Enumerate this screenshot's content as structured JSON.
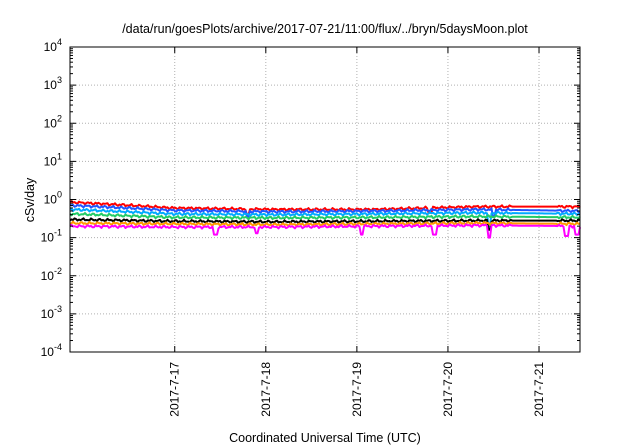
{
  "chart_data": {
    "type": "line",
    "title": "/data/run/goesPlots/archive/2017-07-21/11:00/flux/../bryn/5daysMoon.plot",
    "xlabel": "Coordinated Universal Time (UTC)",
    "ylabel": "cSv/day",
    "y_scale": "log",
    "ylim": [
      0.0001,
      10000
    ],
    "x_range_days": [
      -1.15,
      4.45
    ],
    "grid": true,
    "y_ticks": [
      {
        "value": 0.0001,
        "base": "10",
        "exp": "-4"
      },
      {
        "value": 0.001,
        "base": "10",
        "exp": "-3"
      },
      {
        "value": 0.01,
        "base": "10",
        "exp": "-2"
      },
      {
        "value": 0.1,
        "base": "10",
        "exp": "-1"
      },
      {
        "value": 1,
        "base": "10",
        "exp": "0"
      },
      {
        "value": 10,
        "base": "10",
        "exp": "1"
      },
      {
        "value": 100,
        "base": "10",
        "exp": "2"
      },
      {
        "value": 1000,
        "base": "10",
        "exp": "3"
      },
      {
        "value": 10000,
        "base": "10",
        "exp": "4"
      }
    ],
    "x_ticks": [
      {
        "value": 0,
        "label": "2017-7-17"
      },
      {
        "value": 1,
        "label": "2017-7-18"
      },
      {
        "value": 2,
        "label": "2017-7-19"
      },
      {
        "value": 3,
        "label": "2017-7-20"
      },
      {
        "value": 4,
        "label": "2017-7-21"
      }
    ],
    "series": [
      {
        "color": "#ff0000",
        "base": [
          0.85,
          0.6,
          0.55,
          0.55,
          0.65,
          0.65
        ],
        "dips": [
          [
            0.8,
            0.4
          ],
          [
            2.8,
            0.45
          ]
        ]
      },
      {
        "color": "#2255ff",
        "base": [
          0.7,
          0.52,
          0.48,
          0.5,
          0.55,
          0.5
        ],
        "dips": [
          [
            0.8,
            0.35
          ],
          [
            3.5,
            0.35
          ]
        ]
      },
      {
        "color": "#00aaff",
        "base": [
          0.55,
          0.42,
          0.4,
          0.42,
          0.45,
          0.42
        ],
        "dips": [
          [
            3.45,
            0.2
          ]
        ]
      },
      {
        "color": "#22cc66",
        "base": [
          0.42,
          0.34,
          0.33,
          0.34,
          0.36,
          0.34
        ],
        "dips": []
      },
      {
        "color": "#000000",
        "base": [
          0.3,
          0.27,
          0.26,
          0.27,
          0.28,
          0.28
        ],
        "dips": [
          [
            3.45,
            0.16
          ]
        ]
      },
      {
        "color": "#ff9900",
        "base": [
          0.24,
          0.23,
          0.22,
          0.23,
          0.24,
          0.23
        ],
        "dips": []
      },
      {
        "color": "#ff00ff",
        "base": [
          0.2,
          0.19,
          0.19,
          0.2,
          0.21,
          0.2
        ],
        "dips": [
          [
            0.45,
            0.12
          ],
          [
            0.9,
            0.13
          ],
          [
            2.05,
            0.12
          ],
          [
            2.85,
            0.12
          ],
          [
            3.45,
            0.1
          ],
          [
            4.3,
            0.11
          ],
          [
            4.42,
            0.12
          ]
        ]
      }
    ]
  }
}
